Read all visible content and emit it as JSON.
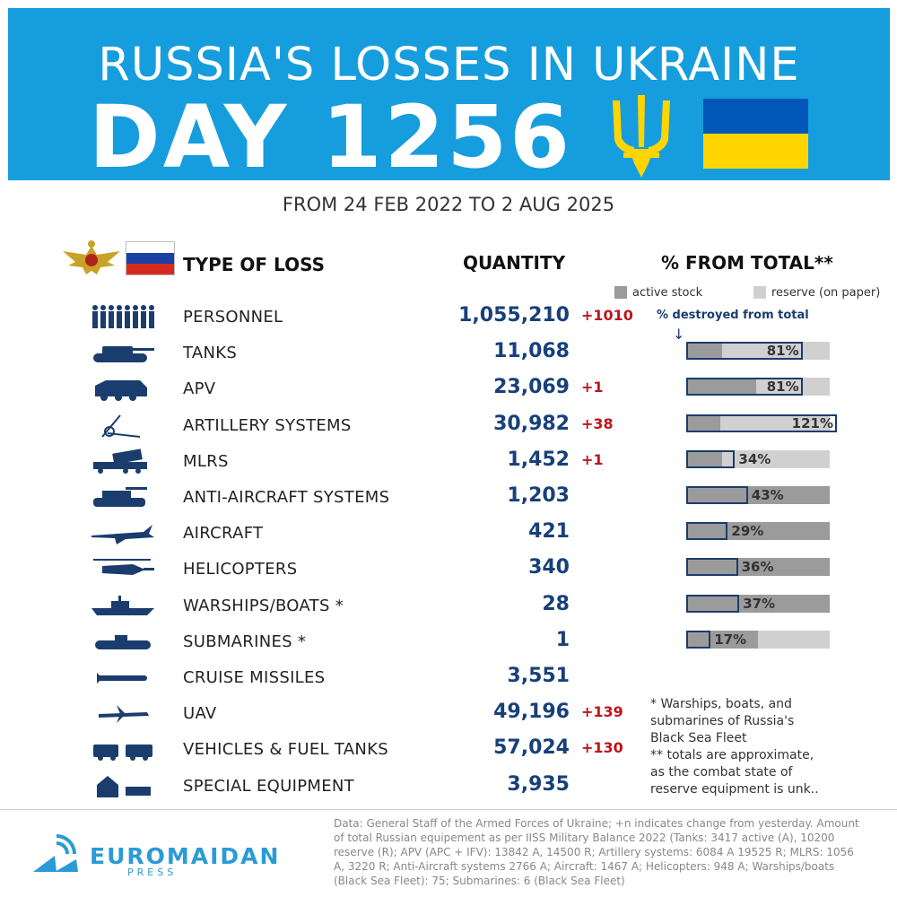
{
  "header": {
    "title_line1": "RUSSIA'S LOSSES IN UKRAINE",
    "title_line2": "DAY 1256"
  },
  "subtitle": "FROM 24 FEB 2022 TO 2 AUG 2025",
  "columns": {
    "type": "TYPE OF LOSS",
    "quantity": "QUANTITY",
    "percent": "% FROM TOTAL**"
  },
  "legend": {
    "active": "active stock",
    "reserve": "reserve (on paper)",
    "destroyed_note": "% destroyed from total",
    "arrow": "↓"
  },
  "colors": {
    "header_bg": "#169ddd",
    "quantity": "#17407a",
    "delta": "#c0141c",
    "active_stock": "#9b9b9b",
    "reserve_stock": "#d0d0d0",
    "destroyed_outline": "#1a3d6e"
  },
  "chart_data": {
    "type": "table",
    "rows": [
      {
        "icon": "soldiers-icon",
        "label": "PERSONNEL",
        "quantity": "1,055,210",
        "delta": "+1010",
        "percent": null
      },
      {
        "icon": "tank-icon",
        "label": "TANKS",
        "quantity": "11,068",
        "delta": "",
        "percent": "81%",
        "percent_value": 81,
        "active_share": 0.25
      },
      {
        "icon": "apv-icon",
        "label": "APV",
        "quantity": "23,069",
        "delta": "+1",
        "percent": "81%",
        "percent_value": 81,
        "active_share": 0.49
      },
      {
        "icon": "artillery-icon",
        "label": "ARTILLERY SYSTEMS",
        "quantity": "30,982",
        "delta": "+38",
        "percent": "121%",
        "percent_value": 121,
        "active_share": 0.24
      },
      {
        "icon": "mlrs-icon",
        "label": "MLRS",
        "quantity": "1,452",
        "delta": "+1",
        "percent": "34%",
        "percent_value": 34,
        "active_share": 0.25
      },
      {
        "icon": "anti-aircraft-icon",
        "label": "ANTI-AIRCRAFT SYSTEMS",
        "quantity": "1,203",
        "delta": "",
        "percent": "43%",
        "percent_value": 43,
        "active_share": 1.0
      },
      {
        "icon": "aircraft-icon",
        "label": "AIRCRAFT",
        "quantity": "421",
        "delta": "",
        "percent": "29%",
        "percent_value": 29,
        "active_share": 1.0
      },
      {
        "icon": "helicopter-icon",
        "label": "HELICOPTERS",
        "quantity": "340",
        "delta": "",
        "percent": "36%",
        "percent_value": 36,
        "active_share": 1.0
      },
      {
        "icon": "warship-icon",
        "label": "WARSHIPS/BOATS *",
        "quantity": "28",
        "delta": "",
        "percent": "37%",
        "percent_value": 37,
        "active_share": 1.0
      },
      {
        "icon": "submarine-icon",
        "label": "SUBMARINES *",
        "quantity": "1",
        "delta": "",
        "percent": "17%",
        "percent_value": 17,
        "active_share": 0.5
      },
      {
        "icon": "cruise-missile-icon",
        "label": "CRUISE MISSILES",
        "quantity": "3,551",
        "delta": "",
        "percent": null
      },
      {
        "icon": "uav-icon",
        "label": "UAV",
        "quantity": "49,196",
        "delta": "+139",
        "percent": null
      },
      {
        "icon": "vehicles-icon",
        "label": "VEHICLES & FUEL TANKS",
        "quantity": "57,024",
        "delta": "+130",
        "percent": null
      },
      {
        "icon": "special-equipment-icon",
        "label": "SPECIAL EQUIPMENT",
        "quantity": "3,935",
        "delta": "",
        "percent": null
      }
    ]
  },
  "footnote": {
    "line1": "* Warships, boats, and",
    "line2": "submarines of Russia's",
    "line3": "Black Sea Fleet",
    "line4": "** totals are approximate,",
    "line5": "as the combat state of",
    "line6": "reserve equipment is unk.."
  },
  "logo": {
    "name": "EUROMAIDAN",
    "sub": "PRESS"
  },
  "source": "Data: General Staff of the Armed Forces of Ukraine; +n indicates change from yesterday. Amount of total Russian equipement as per IISS Military Balance 2022 (Tanks: 3417 active (A), 10200 reserve (R); APV (APC + IFV): 13842 A, 14500 R; Artillery systems: 6084 A 19525 R; MLRS: 1056 A, 3220 R; Anti-Aircraft systems 2766 A; Aircraft: 1467 A; Helicopters: 948 A; Warships/boats (Black Sea Fleet): 75; Submarines: 6 (Black Sea Fleet)"
}
